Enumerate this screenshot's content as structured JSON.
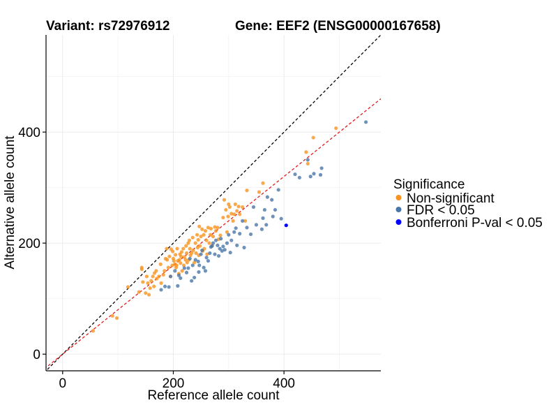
{
  "chart_data": {
    "type": "scatter",
    "title_variant": "Variant: rs72976912",
    "title_gene": "Gene: EEF2 (ENSG00000167658)",
    "xlabel": "Reference allele count",
    "ylabel": "Alternative allele count",
    "xlim": [
      -30,
      575
    ],
    "ylim": [
      -30,
      575
    ],
    "x_ticks": [
      0,
      200,
      400
    ],
    "y_ticks": [
      0,
      200,
      400
    ],
    "x_tick_labels": [
      "0",
      "200",
      "400"
    ],
    "y_tick_labels": [
      "0",
      "200",
      "400"
    ],
    "grid_minor": [
      100,
      300,
      500
    ],
    "reference_lines": [
      {
        "name": "identity-line",
        "slope": 1.0,
        "intercept": 0,
        "color": "#000000",
        "dash": "dashed"
      },
      {
        "name": "fit-line",
        "slope": 0.8,
        "intercept": 0,
        "color": "#e41a1c",
        "dash": "dashed"
      }
    ],
    "legend": {
      "title": "Significance",
      "placement": "right",
      "entries": [
        {
          "label": "Non-significant",
          "color": "#f7931e"
        },
        {
          "label": "FDR < 0.05",
          "color": "#4a77a8"
        },
        {
          "label": "Bonferroni P-val < 0.05",
          "color": "#0000ff"
        }
      ]
    },
    "series": [
      {
        "name": "Non-significant",
        "color": "#f7931e",
        "points": [
          [
            55,
            42
          ],
          [
            90,
            69
          ],
          [
            98,
            65
          ],
          [
            118,
            121
          ],
          [
            138,
            112
          ],
          [
            143,
            153
          ],
          [
            143,
            156
          ],
          [
            145,
            130
          ],
          [
            150,
            110
          ],
          [
            152,
            140
          ],
          [
            154,
            128
          ],
          [
            156,
            107
          ],
          [
            158,
            119
          ],
          [
            160,
            132
          ],
          [
            163,
            140
          ],
          [
            165,
            122
          ],
          [
            166,
            146
          ],
          [
            169,
            150
          ],
          [
            170,
            136
          ],
          [
            174,
            140
          ],
          [
            177,
            162
          ],
          [
            178,
            128
          ],
          [
            182,
            143
          ],
          [
            184,
            150
          ],
          [
            186,
            172
          ],
          [
            188,
            190
          ],
          [
            189,
            170
          ],
          [
            191,
            156
          ],
          [
            193,
            176
          ],
          [
            195,
            140
          ],
          [
            196,
            189
          ],
          [
            198,
            160
          ],
          [
            199,
            185
          ],
          [
            200,
            172
          ],
          [
            201,
            168
          ],
          [
            203,
            162
          ],
          [
            204,
            179
          ],
          [
            205,
            156
          ],
          [
            206,
            160
          ],
          [
            207,
            190
          ],
          [
            208,
            168
          ],
          [
            210,
            145
          ],
          [
            211,
            170
          ],
          [
            212,
            180
          ],
          [
            213,
            164
          ],
          [
            214,
            176
          ],
          [
            215,
            184
          ],
          [
            216,
            150
          ],
          [
            218,
            190
          ],
          [
            219,
            160
          ],
          [
            220,
            175
          ],
          [
            222,
            170
          ],
          [
            223,
            195
          ],
          [
            224,
            182
          ],
          [
            225,
            165
          ],
          [
            227,
            200
          ],
          [
            228,
            170
          ],
          [
            229,
            205
          ],
          [
            230,
            190
          ],
          [
            231,
            178
          ],
          [
            233,
            182
          ],
          [
            235,
            210
          ],
          [
            236,
            187
          ],
          [
            238,
            165
          ],
          [
            240,
            200
          ],
          [
            241,
            182
          ],
          [
            243,
            215
          ],
          [
            244,
            192
          ],
          [
            245,
            206
          ],
          [
            246,
            178
          ],
          [
            247,
            230
          ],
          [
            248,
            195
          ],
          [
            250,
            212
          ],
          [
            252,
            225
          ],
          [
            253,
            186
          ],
          [
            255,
            215
          ],
          [
            256,
            190
          ],
          [
            258,
            222
          ],
          [
            260,
            205
          ],
          [
            261,
            180
          ],
          [
            263,
            228
          ],
          [
            265,
            200
          ],
          [
            267,
            215
          ],
          [
            268,
            226
          ],
          [
            270,
            195
          ],
          [
            272,
            212
          ],
          [
            275,
            229
          ],
          [
            277,
            222
          ],
          [
            280,
            228
          ],
          [
            282,
            207
          ],
          [
            285,
            214
          ],
          [
            290,
            246
          ],
          [
            292,
            278
          ],
          [
            295,
            260
          ],
          [
            297,
            220
          ],
          [
            299,
            248
          ],
          [
            300,
            270
          ],
          [
            302,
            265
          ],
          [
            305,
            253
          ],
          [
            308,
            240
          ],
          [
            310,
            252
          ],
          [
            312,
            270
          ],
          [
            315,
            258
          ],
          [
            318,
            266
          ],
          [
            320,
            252
          ],
          [
            325,
            265
          ],
          [
            330,
            240
          ],
          [
            333,
            295
          ],
          [
            355,
            292
          ],
          [
            362,
            308
          ],
          [
            440,
            364
          ],
          [
            443,
            343
          ],
          [
            453,
            390
          ],
          [
            494,
            407
          ]
        ]
      },
      {
        "name": "FDR < 0.05",
        "color": "#4a77a8",
        "points": [
          [
            178,
            116
          ],
          [
            185,
            122
          ],
          [
            192,
            121
          ],
          [
            195,
            140
          ],
          [
            203,
            150
          ],
          [
            208,
            123
          ],
          [
            210,
            142
          ],
          [
            213,
            137
          ],
          [
            220,
            155
          ],
          [
            224,
            147
          ],
          [
            227,
            155
          ],
          [
            230,
            172
          ],
          [
            233,
            132
          ],
          [
            235,
            160
          ],
          [
            238,
            138
          ],
          [
            240,
            170
          ],
          [
            245,
            167
          ],
          [
            246,
            148
          ],
          [
            247,
            160
          ],
          [
            250,
            180
          ],
          [
            252,
            187
          ],
          [
            255,
            156
          ],
          [
            258,
            150
          ],
          [
            260,
            174
          ],
          [
            263,
            168
          ],
          [
            266,
            182
          ],
          [
            268,
            193
          ],
          [
            270,
            195
          ],
          [
            272,
            200
          ],
          [
            275,
            180
          ],
          [
            277,
            205
          ],
          [
            280,
            196
          ],
          [
            282,
            177
          ],
          [
            284,
            190
          ],
          [
            286,
            208
          ],
          [
            288,
            186
          ],
          [
            290,
            194
          ],
          [
            293,
            188
          ],
          [
            297,
            200
          ],
          [
            300,
            215
          ],
          [
            303,
            183
          ],
          [
            305,
            205
          ],
          [
            310,
            220
          ],
          [
            313,
            227
          ],
          [
            315,
            196
          ],
          [
            320,
            217
          ],
          [
            325,
            240
          ],
          [
            328,
            192
          ],
          [
            333,
            228
          ],
          [
            340,
            216
          ],
          [
            345,
            265
          ],
          [
            350,
            233
          ],
          [
            360,
            225
          ],
          [
            362,
            245
          ],
          [
            365,
            260
          ],
          [
            368,
            233
          ],
          [
            370,
            283
          ],
          [
            378,
            278
          ],
          [
            380,
            248
          ],
          [
            384,
            260
          ],
          [
            390,
            296
          ],
          [
            395,
            244
          ],
          [
            420,
            324
          ],
          [
            428,
            318
          ],
          [
            443,
            350
          ],
          [
            448,
            320
          ],
          [
            454,
            325
          ],
          [
            466,
            323
          ],
          [
            468,
            335
          ],
          [
            548,
            418
          ]
        ]
      },
      {
        "name": "Bonferroni P-val < 0.05",
        "color": "#0000ff",
        "points": [
          [
            404,
            232
          ]
        ]
      }
    ]
  }
}
